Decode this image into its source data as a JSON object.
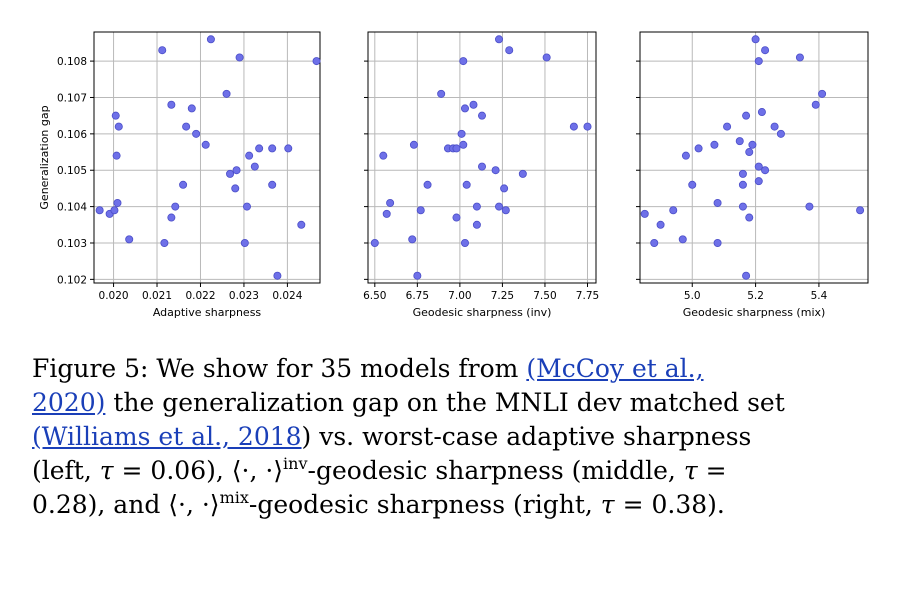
{
  "chart_data": [
    {
      "type": "scatter",
      "xlabel": "Adaptive sharpness",
      "ylabel": "Generalization gap",
      "xlim": [
        0.01955,
        0.02475
      ],
      "ylim": [
        0.1019,
        0.1088
      ],
      "xticks": [
        0.02,
        0.021,
        0.022,
        0.023,
        0.024
      ],
      "xtick_labels": [
        "0.020",
        "0.021",
        "0.022",
        "0.023",
        "0.024"
      ],
      "yticks": [
        0.102,
        0.103,
        0.104,
        0.105,
        0.106,
        0.107,
        0.108
      ],
      "ytick_labels": [
        "0.102",
        "0.103",
        "0.104",
        "0.105",
        "0.106",
        "0.107",
        "0.108"
      ],
      "grid": true,
      "points": [
        {
          "x": 0.01968,
          "y": 0.1039
        },
        {
          "x": 0.01991,
          "y": 0.1038
        },
        {
          "x": 0.02002,
          "y": 0.1039
        },
        {
          "x": 0.02009,
          "y": 0.1041
        },
        {
          "x": 0.02005,
          "y": 0.1065
        },
        {
          "x": 0.02012,
          "y": 0.1062
        },
        {
          "x": 0.02007,
          "y": 0.1054
        },
        {
          "x": 0.02036,
          "y": 0.1031
        },
        {
          "x": 0.02112,
          "y": 0.1083
        },
        {
          "x": 0.02117,
          "y": 0.103
        },
        {
          "x": 0.02133,
          "y": 0.1068
        },
        {
          "x": 0.02133,
          "y": 0.1037
        },
        {
          "x": 0.02142,
          "y": 0.104
        },
        {
          "x": 0.0216,
          "y": 0.1046
        },
        {
          "x": 0.02167,
          "y": 0.1062
        },
        {
          "x": 0.0218,
          "y": 0.1067
        },
        {
          "x": 0.0219,
          "y": 0.106
        },
        {
          "x": 0.02212,
          "y": 0.1057
        },
        {
          "x": 0.02224,
          "y": 0.1086
        },
        {
          "x": 0.0226,
          "y": 0.1071
        },
        {
          "x": 0.02268,
          "y": 0.1049
        },
        {
          "x": 0.02283,
          "y": 0.105
        },
        {
          "x": 0.0228,
          "y": 0.1045
        },
        {
          "x": 0.0229,
          "y": 0.1081
        },
        {
          "x": 0.02302,
          "y": 0.103
        },
        {
          "x": 0.02307,
          "y": 0.104
        },
        {
          "x": 0.02312,
          "y": 0.1054
        },
        {
          "x": 0.02325,
          "y": 0.1051
        },
        {
          "x": 0.02335,
          "y": 0.1056
        },
        {
          "x": 0.02365,
          "y": 0.1046
        },
        {
          "x": 0.02365,
          "y": 0.1056
        },
        {
          "x": 0.02377,
          "y": 0.1021
        },
        {
          "x": 0.02402,
          "y": 0.1056
        },
        {
          "x": 0.02432,
          "y": 0.1035
        },
        {
          "x": 0.02467,
          "y": 0.108
        }
      ]
    },
    {
      "type": "scatter",
      "xlabel": "Geodesic sharpness (inv)",
      "ylabel": "",
      "xlim": [
        6.46,
        7.8
      ],
      "ylim": [
        0.1019,
        0.1088
      ],
      "xticks": [
        6.5,
        6.75,
        7.0,
        7.25,
        7.5,
        7.75
      ],
      "xtick_labels": [
        "6.50",
        "6.75",
        "7.00",
        "7.25",
        "7.50",
        "7.75"
      ],
      "yticks": [
        0.102,
        0.103,
        0.104,
        0.105,
        0.106,
        0.107,
        0.108
      ],
      "grid": true,
      "points": [
        {
          "x": 6.5,
          "y": 0.103
        },
        {
          "x": 6.55,
          "y": 0.1054
        },
        {
          "x": 6.57,
          "y": 0.1038
        },
        {
          "x": 6.59,
          "y": 0.1041
        },
        {
          "x": 6.72,
          "y": 0.1031
        },
        {
          "x": 6.73,
          "y": 0.1057
        },
        {
          "x": 6.75,
          "y": 0.1021
        },
        {
          "x": 6.77,
          "y": 0.1039
        },
        {
          "x": 6.81,
          "y": 0.1046
        },
        {
          "x": 6.89,
          "y": 0.1071
        },
        {
          "x": 6.93,
          "y": 0.1056
        },
        {
          "x": 6.96,
          "y": 0.1056
        },
        {
          "x": 6.98,
          "y": 0.1056
        },
        {
          "x": 6.98,
          "y": 0.1037
        },
        {
          "x": 7.01,
          "y": 0.106
        },
        {
          "x": 7.02,
          "y": 0.1057
        },
        {
          "x": 7.03,
          "y": 0.103
        },
        {
          "x": 7.04,
          "y": 0.1046
        },
        {
          "x": 7.03,
          "y": 0.1067
        },
        {
          "x": 7.02,
          "y": 0.108
        },
        {
          "x": 7.08,
          "y": 0.1068
        },
        {
          "x": 7.1,
          "y": 0.104
        },
        {
          "x": 7.1,
          "y": 0.1035
        },
        {
          "x": 7.13,
          "y": 0.1051
        },
        {
          "x": 7.13,
          "y": 0.1065
        },
        {
          "x": 7.21,
          "y": 0.105
        },
        {
          "x": 7.23,
          "y": 0.104
        },
        {
          "x": 7.23,
          "y": 0.1086
        },
        {
          "x": 7.26,
          "y": 0.1045
        },
        {
          "x": 7.27,
          "y": 0.1039
        },
        {
          "x": 7.29,
          "y": 0.1083
        },
        {
          "x": 7.37,
          "y": 0.1049
        },
        {
          "x": 7.51,
          "y": 0.1081
        },
        {
          "x": 7.67,
          "y": 0.1062
        },
        {
          "x": 7.75,
          "y": 0.1062
        }
      ]
    },
    {
      "type": "scatter",
      "xlabel": "Geodesic sharpness (mix)",
      "ylabel": "",
      "xlim": [
        4.835,
        5.555
      ],
      "ylim": [
        0.1019,
        0.1088
      ],
      "xticks": [
        5.0,
        5.2,
        5.4
      ],
      "xtick_labels": [
        "5.0",
        "5.2",
        "5.4"
      ],
      "yticks": [
        0.102,
        0.103,
        0.104,
        0.105,
        0.106,
        0.107,
        0.108
      ],
      "grid": true,
      "points": [
        {
          "x": 4.85,
          "y": 0.1038
        },
        {
          "x": 4.88,
          "y": 0.103
        },
        {
          "x": 4.9,
          "y": 0.1035
        },
        {
          "x": 4.94,
          "y": 0.1039
        },
        {
          "x": 4.97,
          "y": 0.1031
        },
        {
          "x": 4.98,
          "y": 0.1054
        },
        {
          "x": 5.0,
          "y": 0.1046
        },
        {
          "x": 5.02,
          "y": 0.1056
        },
        {
          "x": 5.07,
          "y": 0.1057
        },
        {
          "x": 5.08,
          "y": 0.1041
        },
        {
          "x": 5.08,
          "y": 0.103
        },
        {
          "x": 5.11,
          "y": 0.1062
        },
        {
          "x": 5.15,
          "y": 0.1058
        },
        {
          "x": 5.16,
          "y": 0.104
        },
        {
          "x": 5.16,
          "y": 0.1046
        },
        {
          "x": 5.16,
          "y": 0.1049
        },
        {
          "x": 5.17,
          "y": 0.1065
        },
        {
          "x": 5.17,
          "y": 0.1021
        },
        {
          "x": 5.18,
          "y": 0.1037
        },
        {
          "x": 5.18,
          "y": 0.1055
        },
        {
          "x": 5.19,
          "y": 0.1057
        },
        {
          "x": 5.2,
          "y": 0.1086
        },
        {
          "x": 5.21,
          "y": 0.1051
        },
        {
          "x": 5.21,
          "y": 0.1047
        },
        {
          "x": 5.21,
          "y": 0.108
        },
        {
          "x": 5.22,
          "y": 0.1066
        },
        {
          "x": 5.23,
          "y": 0.1083
        },
        {
          "x": 5.23,
          "y": 0.105
        },
        {
          "x": 5.26,
          "y": 0.1062
        },
        {
          "x": 5.28,
          "y": 0.106
        },
        {
          "x": 5.34,
          "y": 0.1081
        },
        {
          "x": 5.37,
          "y": 0.104
        },
        {
          "x": 5.39,
          "y": 0.1068
        },
        {
          "x": 5.41,
          "y": 0.1071
        },
        {
          "x": 5.53,
          "y": 0.1039
        }
      ]
    }
  ],
  "colors": {
    "point_fill": "#6e70e8",
    "point_edge": "#4b4ec8",
    "grid": "#b9b9b9",
    "link": "#1a3fb8"
  },
  "caption": {
    "l1_a": "Figure 5:  We show for 35 models from ",
    "l1_link": "(McCoy et al.,",
    "l2_link": "2020)",
    "l2_b": " the generalization gap on the MNLI dev matched set",
    "l3_link": "(Williams et al., 2018",
    "l3_b": ") vs.  worst-case adaptive sharpness",
    "l4_a": "(left, ",
    "l4_tau": "τ",
    "l4_b": " = 0.06), ⟨·, ·⟩",
    "l4_sup": "inv",
    "l4_c": "-geodesic sharpness (middle, ",
    "l4_tau2": "τ",
    "l4_d": " =",
    "l5_a": "0.28), and ⟨·, ·⟩",
    "l5_sup": "mix",
    "l5_b": "-geodesic sharpness (right, ",
    "l5_tau": "τ",
    "l5_c": " = 0.38)."
  }
}
